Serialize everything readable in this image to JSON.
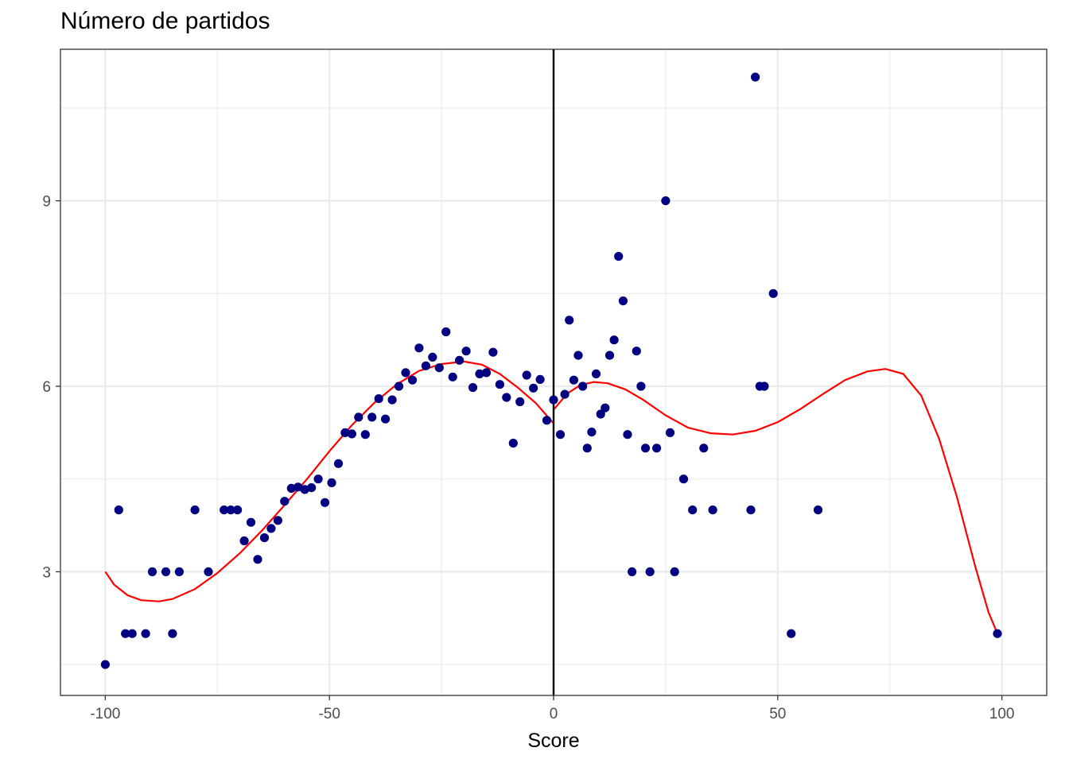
{
  "chart_data": {
    "type": "scatter",
    "title": "Número de partidos",
    "xlabel": "Score",
    "ylabel": "",
    "xlim": [
      -110,
      110
    ],
    "ylim": [
      1.0,
      11.45
    ],
    "x_ticks": [
      -100,
      -50,
      0,
      50,
      100
    ],
    "x_tick_labels": [
      "-100",
      "-50",
      "0",
      "50",
      "100"
    ],
    "y_ticks": [
      3,
      6,
      9
    ],
    "y_tick_labels": [
      "3",
      "6",
      "9"
    ],
    "y_minor_ticks": [
      1.5,
      4.5,
      7.5,
      10.5
    ],
    "grid": true,
    "cutoff_line_x": 0,
    "colors": {
      "points": "#000080",
      "fit": "#ff0000",
      "cutoff": "#000000",
      "grid": "#ebebeb"
    },
    "points": [
      [
        -100,
        1.5
      ],
      [
        -97,
        4
      ],
      [
        -95.5,
        2
      ],
      [
        -94,
        2
      ],
      [
        -91,
        2
      ],
      [
        -89.5,
        3
      ],
      [
        -86.5,
        3
      ],
      [
        -85,
        2
      ],
      [
        -83.5,
        3
      ],
      [
        -80,
        4
      ],
      [
        -77,
        3
      ],
      [
        -73.5,
        4
      ],
      [
        -72,
        4
      ],
      [
        -70.5,
        4
      ],
      [
        -69,
        3.5
      ],
      [
        -67.5,
        3.8
      ],
      [
        -66,
        3.2
      ],
      [
        -64.5,
        3.55
      ],
      [
        -63,
        3.7
      ],
      [
        -61.5,
        3.83
      ],
      [
        -60,
        4.14
      ],
      [
        -58.5,
        4.35
      ],
      [
        -57,
        4.37
      ],
      [
        -55.5,
        4.33
      ],
      [
        -54,
        4.36
      ],
      [
        -52.5,
        4.5
      ],
      [
        -51,
        4.12
      ],
      [
        -49.5,
        4.44
      ],
      [
        -48,
        4.75
      ],
      [
        -46.5,
        5.25
      ],
      [
        -45,
        5.23
      ],
      [
        -43.5,
        5.5
      ],
      [
        -42,
        5.22
      ],
      [
        -40.5,
        5.5
      ],
      [
        -39,
        5.8
      ],
      [
        -37.5,
        5.47
      ],
      [
        -36,
        5.78
      ],
      [
        -34.5,
        6.0
      ],
      [
        -33,
        6.22
      ],
      [
        -31.5,
        6.1
      ],
      [
        -30,
        6.62
      ],
      [
        -28.5,
        6.33
      ],
      [
        -27,
        6.47
      ],
      [
        -25.5,
        6.3
      ],
      [
        -24,
        6.88
      ],
      [
        -22.5,
        6.15
      ],
      [
        -21,
        6.42
      ],
      [
        -19.5,
        6.57
      ],
      [
        -18,
        5.98
      ],
      [
        -16.5,
        6.2
      ],
      [
        -15,
        6.22
      ],
      [
        -13.5,
        6.55
      ],
      [
        -12,
        6.03
      ],
      [
        -10.5,
        5.82
      ],
      [
        -9,
        5.08
      ],
      [
        -7.5,
        5.75
      ],
      [
        -6,
        6.18
      ],
      [
        -4.5,
        5.97
      ],
      [
        -3,
        6.11
      ],
      [
        -1.5,
        5.45
      ],
      [
        0,
        5.78
      ],
      [
        1.5,
        5.22
      ],
      [
        2.5,
        5.87
      ],
      [
        3.5,
        7.07
      ],
      [
        4.5,
        6.1
      ],
      [
        5.5,
        6.5
      ],
      [
        6.5,
        6.0
      ],
      [
        7.5,
        5.0
      ],
      [
        8.5,
        5.26
      ],
      [
        9.5,
        6.2
      ],
      [
        10.5,
        5.55
      ],
      [
        11.5,
        5.65
      ],
      [
        12.5,
        6.5
      ],
      [
        13.5,
        6.75
      ],
      [
        14.5,
        8.1
      ],
      [
        15.5,
        7.38
      ],
      [
        16.5,
        5.22
      ],
      [
        17.5,
        3.0
      ],
      [
        18.5,
        6.57
      ],
      [
        19.5,
        6.0
      ],
      [
        20.5,
        5.0
      ],
      [
        21.5,
        3.0
      ],
      [
        23,
        5.0
      ],
      [
        25,
        9.0
      ],
      [
        26,
        5.25
      ],
      [
        27,
        3.0
      ],
      [
        29,
        4.5
      ],
      [
        31,
        4.0
      ],
      [
        33.5,
        5.0
      ],
      [
        35.5,
        4.0
      ],
      [
        44,
        4.0
      ],
      [
        45,
        11.0
      ],
      [
        46,
        6.0
      ],
      [
        47,
        6.0
      ],
      [
        49,
        7.5
      ],
      [
        53,
        2.0
      ],
      [
        59,
        4.0
      ],
      [
        99,
        2.0
      ]
    ],
    "fit_left": [
      [
        -100,
        3.0
      ],
      [
        -98,
        2.79
      ],
      [
        -95,
        2.62
      ],
      [
        -92,
        2.54
      ],
      [
        -88,
        2.52
      ],
      [
        -85,
        2.56
      ],
      [
        -80,
        2.72
      ],
      [
        -75,
        2.98
      ],
      [
        -70,
        3.3
      ],
      [
        -65,
        3.67
      ],
      [
        -60,
        4.08
      ],
      [
        -55,
        4.5
      ],
      [
        -50,
        4.95
      ],
      [
        -45,
        5.37
      ],
      [
        -40,
        5.73
      ],
      [
        -35,
        6.03
      ],
      [
        -30,
        6.25
      ],
      [
        -25,
        6.36
      ],
      [
        -20,
        6.4
      ],
      [
        -16,
        6.35
      ],
      [
        -12,
        6.2
      ],
      [
        -8,
        5.98
      ],
      [
        -4,
        5.73
      ],
      [
        0,
        5.4
      ]
    ],
    "fit_right": [
      [
        0,
        5.62
      ],
      [
        3,
        5.88
      ],
      [
        6,
        6.02
      ],
      [
        9,
        6.07
      ],
      [
        12,
        6.05
      ],
      [
        16,
        5.95
      ],
      [
        20,
        5.78
      ],
      [
        25,
        5.53
      ],
      [
        30,
        5.33
      ],
      [
        35,
        5.24
      ],
      [
        40,
        5.22
      ],
      [
        45,
        5.28
      ],
      [
        50,
        5.42
      ],
      [
        55,
        5.63
      ],
      [
        60,
        5.87
      ],
      [
        65,
        6.1
      ],
      [
        70,
        6.24
      ],
      [
        74,
        6.28
      ],
      [
        78,
        6.2
      ],
      [
        82,
        5.85
      ],
      [
        86,
        5.15
      ],
      [
        90,
        4.2
      ],
      [
        94,
        3.1
      ],
      [
        97,
        2.35
      ],
      [
        99,
        2.0
      ]
    ]
  }
}
